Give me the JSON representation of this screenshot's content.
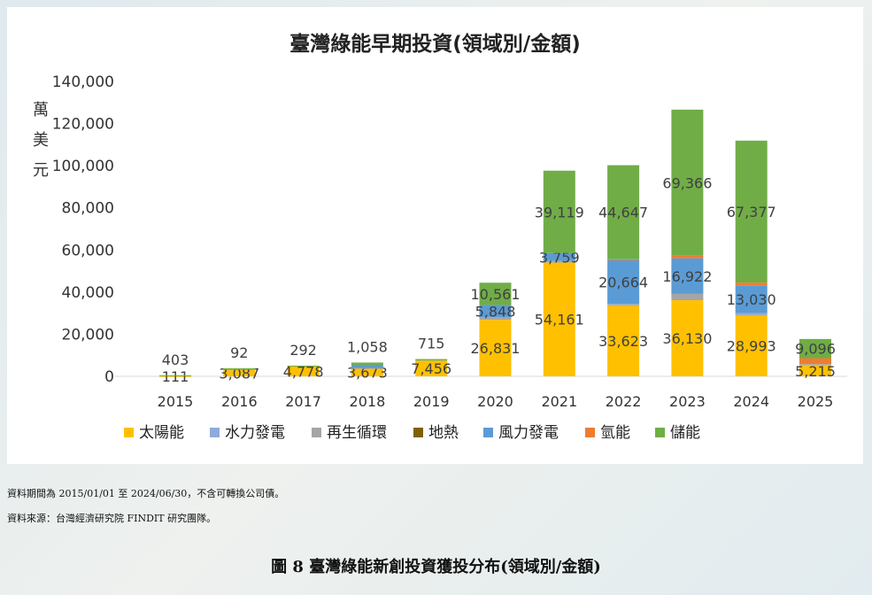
{
  "chart_data": {
    "type": "bar",
    "stacked": true,
    "title": "臺灣綠能早期投資(領域別/金額)",
    "ylabel": "萬美元",
    "ylim": [
      0,
      140000
    ],
    "yticks": [
      "0",
      "20,000",
      "40,000",
      "60,000",
      "80,000",
      "100,000",
      "120,000",
      "140,000"
    ],
    "ytick_values": [
      0,
      20000,
      40000,
      60000,
      80000,
      100000,
      120000,
      140000
    ],
    "categories": [
      "2015",
      "2016",
      "2017",
      "2018",
      "2019",
      "2020",
      "2021",
      "2022",
      "2023",
      "2024",
      "2025"
    ],
    "legend_position": "bottom",
    "series": [
      {
        "name": "太陽能",
        "color": "#FFC000",
        "values": [
          111,
          3087,
          4778,
          3673,
          7456,
          26831,
          54161,
          33623,
          36130,
          28993,
          5215
        ],
        "labels": [
          "111",
          "3,087",
          "4,778",
          "3,673",
          "7,456",
          "26,831",
          "54,161",
          "33,623",
          "36,130",
          "28,993",
          "5,215"
        ]
      },
      {
        "name": "水力發電",
        "color": "#8FAADC",
        "values": [
          0,
          0,
          0,
          0,
          0,
          0,
          300,
          300,
          0,
          300,
          0
        ],
        "labels": [
          null,
          null,
          null,
          null,
          null,
          null,
          null,
          null,
          null,
          null,
          null
        ]
      },
      {
        "name": "再生循環",
        "color": "#A5A5A5",
        "values": [
          0,
          0,
          0,
          300,
          0,
          1200,
          300,
          500,
          3000,
          700,
          600
        ],
        "labels": [
          null,
          null,
          null,
          null,
          null,
          null,
          null,
          null,
          null,
          null,
          null
        ]
      },
      {
        "name": "地熱",
        "color": "#7F6000",
        "values": [
          0,
          0,
          0,
          0,
          0,
          0,
          0,
          0,
          0,
          0,
          0
        ],
        "labels": [
          null,
          null,
          null,
          null,
          null,
          null,
          null,
          null,
          null,
          null,
          null
        ]
      },
      {
        "name": "風力發電",
        "color": "#5B9BD5",
        "values": [
          0,
          600,
          0,
          1500,
          0,
          5848,
          3759,
          20664,
          16922,
          13030,
          0
        ],
        "labels": [
          null,
          null,
          null,
          null,
          null,
          "5,848",
          "3,759",
          "20,664",
          "16,922",
          "13,030",
          null
        ]
      },
      {
        "name": "氫能",
        "color": "#ED7D31",
        "values": [
          0,
          0,
          0,
          0,
          0,
          0,
          0,
          500,
          1200,
          1500,
          2800
        ],
        "labels": [
          null,
          null,
          null,
          null,
          null,
          null,
          null,
          null,
          null,
          null,
          null
        ]
      },
      {
        "name": "儲能",
        "color": "#70AD47",
        "values": [
          403,
          92,
          292,
          1058,
          715,
          10561,
          39119,
          44647,
          69366,
          67377,
          9096
        ],
        "labels": [
          "403",
          "92",
          "292",
          "1,058",
          "715",
          "10,561",
          "39,119",
          "44,647",
          "69,366",
          "67,377",
          "9,096"
        ]
      }
    ]
  },
  "notes": {
    "period": "資料期間為 2015/01/01 至 2024/06/30，不含可轉換公司債。",
    "source": "資料來源：台灣經濟研究院 FINDIT 研究團隊。"
  },
  "caption": "圖 8  臺灣綠能新創投資獲投分布(領域別/金額)"
}
